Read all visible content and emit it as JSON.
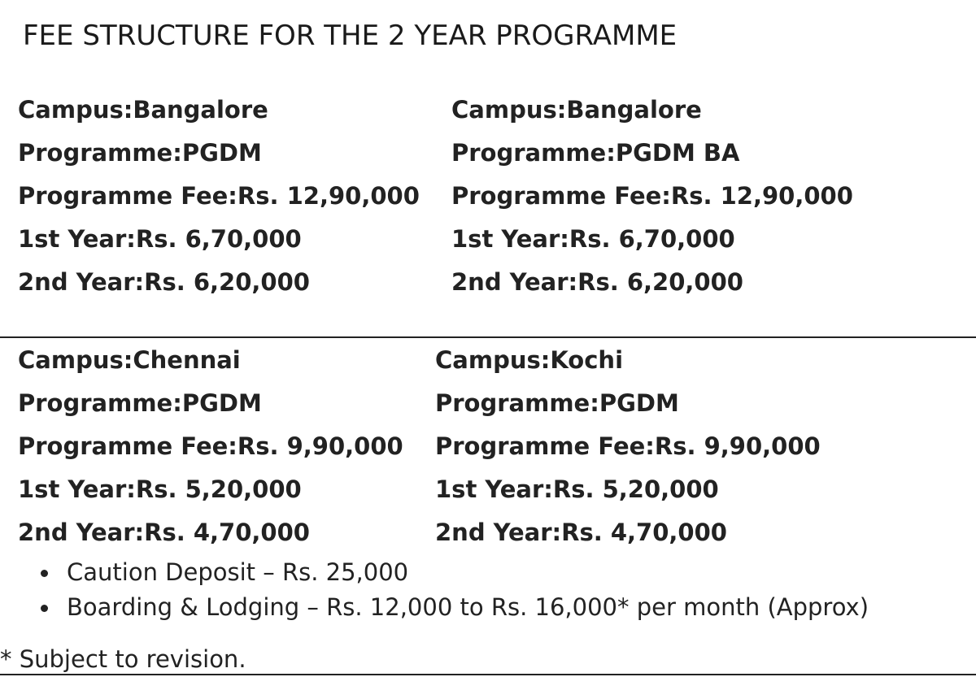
{
  "title": "FEE STRUCTURE FOR THE 2 YEAR PROGRAMME",
  "fees": [
    {
      "campus_label": "Campus:",
      "campus": "Bangalore",
      "programme_label": "Programme:",
      "programme": "PGDM",
      "fee_label": "Programme Fee:",
      "fee": "Rs. 12,90,000",
      "year1_label": "1st Year:",
      "year1": "Rs. 6,70,000",
      "year2_label": "2nd Year:",
      "year2": "Rs. 6,20,000"
    },
    {
      "campus_label": "Campus:",
      "campus": "Bangalore",
      "programme_label": "Programme:",
      "programme": "PGDM BA",
      "fee_label": "Programme Fee:",
      "fee": "Rs. 12,90,000",
      "year1_label": "1st Year:",
      "year1": "Rs. 6,70,000",
      "year2_label": "2nd Year:",
      "year2": "Rs. 6,20,000"
    },
    {
      "campus_label": "Campus:",
      "campus": "Chennai",
      "programme_label": "Programme:",
      "programme": "PGDM",
      "fee_label": "Programme Fee:",
      "fee": "Rs. 9,90,000",
      "year1_label": "1st Year:",
      "year1": "Rs. 5,20,000",
      "year2_label": "2nd Year:",
      "year2": "Rs. 4,70,000"
    },
    {
      "campus_label": "Campus:",
      "campus": "Kochi",
      "programme_label": "Programme:",
      "programme": "PGDM",
      "fee_label": "Programme Fee:",
      "fee": "Rs. 9,90,000",
      "year1_label": "1st Year:",
      "year1": "Rs. 5,20,000",
      "year2_label": "2nd Year:",
      "year2": "Rs. 4,70,000"
    }
  ],
  "notes": [
    "Caution Deposit – Rs. 25,000",
    "Boarding & Lodging – Rs. 12,000 to Rs. 16,000* per month (Approx)"
  ],
  "footnote": "* Subject to revision."
}
